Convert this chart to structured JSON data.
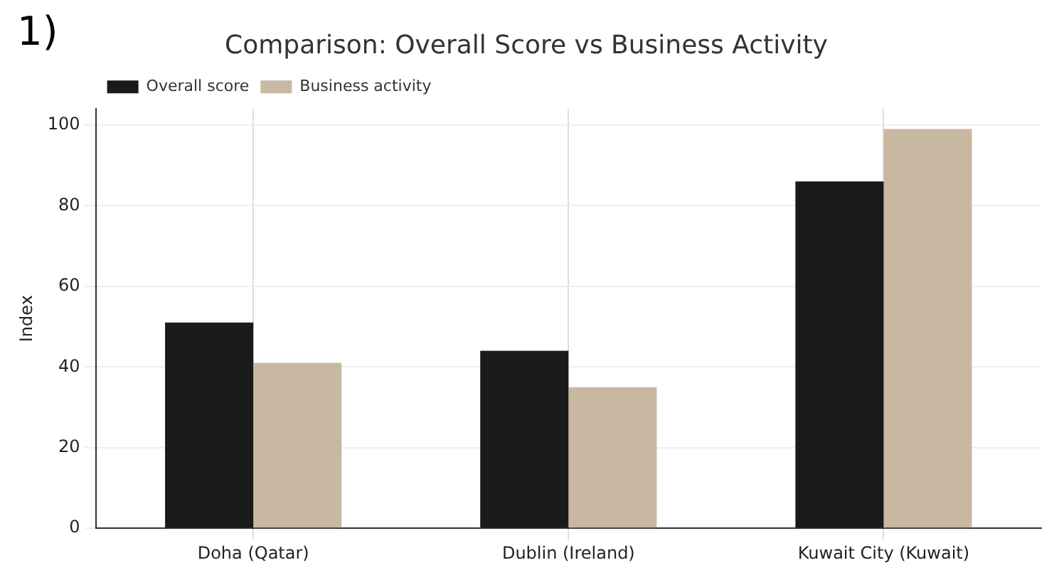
{
  "chart_data": {
    "type": "bar",
    "title": "Comparison: Overall Score vs Business Activity",
    "ylabel": "Index",
    "annotations": [
      "1)"
    ],
    "categories": [
      "Doha (Qatar)",
      "Dublin (Ireland)",
      "Kuwait City (Kuwait)"
    ],
    "series": [
      {
        "name": "Overall score",
        "color": "#1a1a1a",
        "values": [
          51,
          44,
          86
        ]
      },
      {
        "name": "Business activity",
        "color": "#c8b8a2",
        "values": [
          41,
          35,
          99
        ]
      }
    ],
    "ylim": [
      0,
      104
    ],
    "yticks": [
      0,
      20,
      40,
      60,
      80,
      100
    ],
    "grid": true,
    "legend": "top left"
  }
}
